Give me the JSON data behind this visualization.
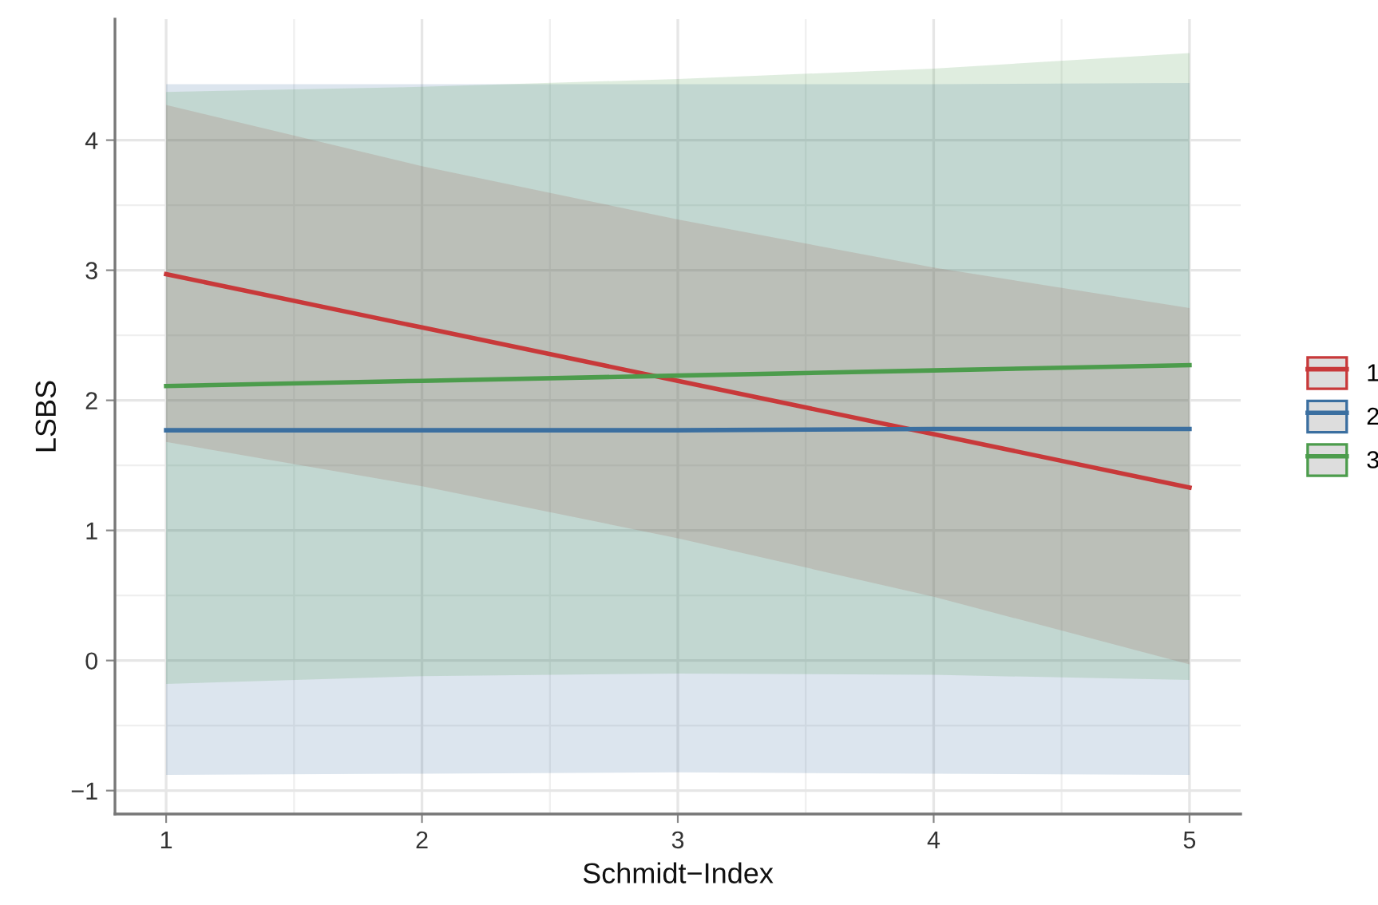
{
  "chart_data": {
    "type": "line",
    "xlabel": "Schmidt−Index",
    "ylabel": "LSBS",
    "x": [
      1,
      2,
      3,
      4,
      5
    ],
    "series": [
      {
        "name": "1",
        "color": "#c8393a",
        "values": [
          2.97,
          2.56,
          2.15,
          1.74,
          1.33
        ],
        "lower": [
          1.68,
          1.34,
          0.94,
          0.49,
          -0.03
        ],
        "upper": [
          4.27,
          3.8,
          3.39,
          3.02,
          2.71
        ]
      },
      {
        "name": "2",
        "color": "#3b6fa0",
        "values": [
          1.77,
          1.77,
          1.77,
          1.78,
          1.78
        ],
        "lower": [
          -0.88,
          -0.87,
          -0.86,
          -0.87,
          -0.88
        ],
        "upper": [
          4.43,
          4.43,
          4.43,
          4.43,
          4.44
        ]
      },
      {
        "name": "3",
        "color": "#4c9c4c",
        "values": [
          2.11,
          2.15,
          2.19,
          2.23,
          2.27
        ],
        "lower": [
          -0.18,
          -0.12,
          -0.1,
          -0.11,
          -0.15
        ],
        "upper": [
          4.37,
          4.41,
          4.47,
          4.55,
          4.67
        ]
      }
    ],
    "xlim": [
      0.8,
      5.2
    ],
    "ylim": [
      -1.18,
      4.93
    ],
    "xticks": [
      1,
      2,
      3,
      4,
      5
    ],
    "yticks": [
      -1,
      0,
      1,
      2,
      3,
      4
    ],
    "grid": true,
    "legend": "right",
    "line_style": "solid",
    "marker": "none"
  }
}
